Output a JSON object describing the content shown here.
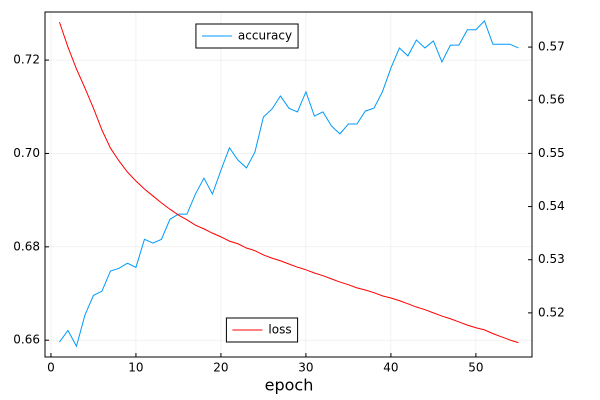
{
  "chart_data": {
    "type": "line",
    "x_label": "epoch",
    "x": [
      1,
      2,
      3,
      4,
      5,
      6,
      7,
      8,
      9,
      10,
      11,
      12,
      13,
      14,
      15,
      16,
      17,
      18,
      19,
      20,
      21,
      22,
      23,
      24,
      25,
      26,
      27,
      28,
      29,
      30,
      31,
      32,
      33,
      34,
      35,
      36,
      37,
      38,
      39,
      40,
      41,
      42,
      43,
      44,
      45,
      46,
      47,
      48,
      49,
      50,
      51,
      52,
      53,
      54,
      55
    ],
    "xlim": [
      -0.7,
      56.6
    ],
    "xticks": [
      0,
      10,
      20,
      30,
      40,
      50
    ],
    "ylim": [
      0.6564,
      0.7303
    ],
    "yticks": [
      0.66,
      0.68,
      {
        "value": 0.7,
        "label": "0.70"
      },
      0.72
    ],
    "y2lim": [
      0.5117,
      0.5766
    ],
    "y2ticks": [
      0.52,
      0.53,
      0.54,
      0.55,
      0.56,
      0.57
    ],
    "grid": true,
    "series": [
      {
        "name": "accuracy",
        "color": "#009af9",
        "legend": "top",
        "values": [
          0.6596,
          0.6621,
          0.6587,
          0.6654,
          0.6696,
          0.6705,
          0.6748,
          0.6754,
          0.6765,
          0.6756,
          0.6816,
          0.6808,
          0.6816,
          0.6859,
          0.687,
          0.687,
          0.6913,
          0.6947,
          0.6913,
          0.6964,
          0.7012,
          0.6986,
          0.6969,
          0.7003,
          0.7078,
          0.7095,
          0.7123,
          0.7097,
          0.7089,
          0.7132,
          0.708,
          0.7089,
          0.7059,
          0.7042,
          0.7063,
          0.7063,
          0.7091,
          0.7097,
          0.7132,
          0.7183,
          0.7226,
          0.7209,
          0.7243,
          0.7226,
          0.7241,
          0.7196,
          0.7232,
          0.7232,
          0.7265,
          0.7265,
          0.7284,
          0.7234,
          0.7234,
          0.7234,
          0.7226
        ]
      },
      {
        "name": "loss",
        "color": "#ff0000",
        "axis": "y2",
        "legend": "bottom",
        "values": [
          0.5747,
          0.57,
          0.5659,
          0.5623,
          0.5585,
          0.5544,
          0.551,
          0.5486,
          0.5465,
          0.5448,
          0.5433,
          0.542,
          0.5407,
          0.5395,
          0.5384,
          0.5375,
          0.5365,
          0.5358,
          0.535,
          0.5343,
          0.5335,
          0.533,
          0.5322,
          0.5317,
          0.5309,
          0.5303,
          0.5298,
          0.5292,
          0.5286,
          0.5281,
          0.5275,
          0.527,
          0.5264,
          0.5258,
          0.5253,
          0.5247,
          0.5243,
          0.5238,
          0.5232,
          0.5228,
          0.5223,
          0.5217,
          0.5211,
          0.5206,
          0.52,
          0.5194,
          0.5189,
          0.5183,
          0.5177,
          0.5172,
          0.5168,
          0.5161,
          0.5155,
          0.5149,
          0.5144
        ]
      }
    ]
  }
}
